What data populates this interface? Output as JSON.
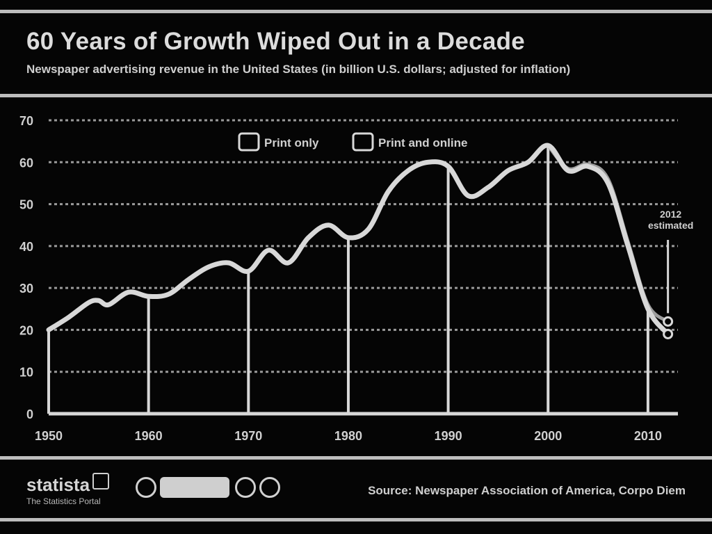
{
  "header": {
    "title": "60 Years of Growth Wiped Out in a Decade",
    "subtitle": "Newspaper advertising revenue in the United States (in billion U.S. dollars; adjusted for inflation)"
  },
  "footer": {
    "brand": "statista",
    "brand_tagline": "The Statistics Portal",
    "source": "Source: Newspaper Association of America, Corpo Diem"
  },
  "chart_data": {
    "type": "line",
    "title": "60 Years of Growth Wiped Out in a Decade",
    "subtitle": "Newspaper advertising revenue in the United States (in billion U.S. dollars; adjusted for inflation)",
    "xlabel": "",
    "ylabel": "",
    "xlim": [
      1950,
      2013
    ],
    "ylim": [
      0,
      70
    ],
    "x_ticks": [
      1950,
      1960,
      1970,
      1980,
      1990,
      2000,
      2010
    ],
    "y_ticks": [
      0,
      10,
      20,
      30,
      40,
      50,
      60,
      70
    ],
    "grid": true,
    "legend": "top-center",
    "annotation": {
      "x": 2012,
      "text_line1": "2012",
      "text_line2": "estimated"
    },
    "colors": {
      "background": "#050505",
      "line": "#d8d8d8",
      "grid": "#9a9a9a",
      "text": "#d0d0d0"
    },
    "series": [
      {
        "name": "Print only",
        "x": [
          1950,
          1952,
          1954,
          1955,
          1956,
          1958,
          1960,
          1962,
          1964,
          1966,
          1968,
          1970,
          1972,
          1974,
          1976,
          1978,
          1980,
          1982,
          1984,
          1986,
          1988,
          1990,
          1992,
          1994,
          1996,
          1998,
          2000,
          2002,
          2004,
          2006,
          2008,
          2010,
          2012
        ],
        "y": [
          20,
          23,
          26.5,
          27,
          26,
          29,
          28,
          28.5,
          32,
          35,
          36,
          34,
          39,
          36,
          42,
          45,
          42,
          44,
          53,
          58,
          60,
          59,
          52,
          54,
          58,
          60,
          64,
          58,
          59,
          55,
          40,
          25,
          19
        ]
      },
      {
        "name": "Print and online",
        "x": [
          2000,
          2002,
          2004,
          2006,
          2008,
          2010,
          2012
        ],
        "y": [
          64,
          58.5,
          59.5,
          56,
          41,
          26,
          22
        ]
      }
    ]
  }
}
